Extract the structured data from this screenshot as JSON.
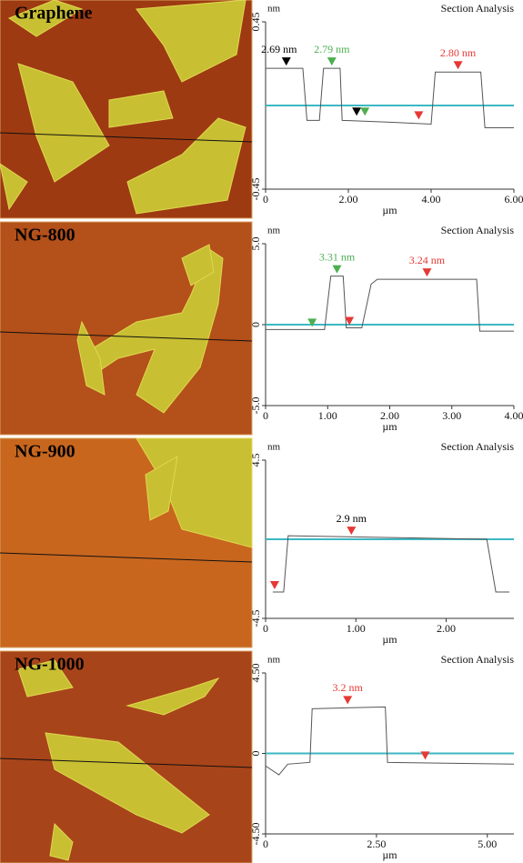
{
  "chart_data": [
    {
      "type": "line",
      "image_label": "Graphene",
      "title": "Section Analysis",
      "ylabel": "nm",
      "xlabel": "µm",
      "color": "#555555",
      "xlim": [
        0,
        6
      ],
      "xticks": [
        0,
        {
          "value": 2,
          "label": "2.00"
        },
        {
          "value": 4,
          "label": "4.00"
        },
        {
          "value": 6,
          "label": "6.00"
        }
      ],
      "ylim": [
        -0.45,
        0.45
      ],
      "yticks": [
        -0.45,
        0.45
      ],
      "x": [
        0,
        0.9,
        1.0,
        1.3,
        1.4,
        1.8,
        1.85,
        3.0,
        4.0,
        4.1,
        5.2,
        5.3,
        6.0
      ],
      "values": [
        0.2,
        0.2,
        -0.08,
        -0.08,
        0.2,
        0.2,
        -0.08,
        -0.09,
        -0.1,
        0.18,
        0.18,
        -0.12,
        -0.12
      ],
      "markers": [
        {
          "color": "#000000",
          "label": "2.69 nm",
          "label_color": "#000000",
          "x": [
            0.5,
            2.2
          ],
          "values": [
            0.2,
            -0.07
          ]
        },
        {
          "color": "#4caf50",
          "label": "2.79 nm",
          "label_color": "#4caf50",
          "x": [
            1.6,
            2.4
          ],
          "values": [
            0.2,
            -0.07
          ]
        },
        {
          "color": "#e53935",
          "label": "2.80 nm",
          "label_color": "#e53935",
          "x": [
            3.7,
            4.65
          ],
          "values": [
            -0.09,
            0.18
          ]
        }
      ]
    },
    {
      "type": "line",
      "image_label": "NG-800",
      "title": "Section Analysis",
      "ylabel": "nm",
      "xlabel": "µm",
      "color": "#555555",
      "xlim": [
        0,
        4
      ],
      "xticks": [
        0,
        {
          "value": 1,
          "label": "1.00"
        },
        {
          "value": 2,
          "label": "2.00"
        },
        {
          "value": 3,
          "label": "3.00"
        },
        {
          "value": 4,
          "label": "4.00"
        }
      ],
      "ylim": [
        -5,
        5
      ],
      "yticks": [
        {
          "value": -5,
          "label": "-5.0"
        },
        0,
        {
          "value": 5,
          "label": "5.0"
        }
      ],
      "x": [
        0,
        0.95,
        1.05,
        1.25,
        1.3,
        1.55,
        1.7,
        1.8,
        3.4,
        3.45,
        4.0
      ],
      "values": [
        -0.3,
        -0.3,
        3.0,
        3.0,
        -0.2,
        -0.2,
        2.5,
        2.8,
        2.8,
        -0.4,
        -0.4
      ],
      "markers": [
        {
          "color": "#4caf50",
          "label": "3.31 nm",
          "label_color": "#4caf50",
          "x": [
            0.75,
            1.15
          ],
          "values": [
            -0.3,
            3.0
          ]
        },
        {
          "color": "#e53935",
          "label": "3.24 nm",
          "label_color": "#e53935",
          "x": [
            1.35,
            2.6
          ],
          "values": [
            -0.2,
            2.8
          ]
        }
      ]
    },
    {
      "type": "line",
      "image_label": "NG-900",
      "title": "Section Analysis",
      "ylabel": "nm",
      "xlabel": "µm",
      "color": "#555555",
      "xlim": [
        0,
        2.75
      ],
      "xticks": [
        0,
        {
          "value": 1,
          "label": "1.00"
        },
        {
          "value": 2,
          "label": "2.00"
        }
      ],
      "ylim": [
        -4.5,
        4.5
      ],
      "yticks": [
        -4.5,
        4.5
      ],
      "x": [
        0.08,
        0.2,
        0.25,
        2.45,
        2.55,
        2.7
      ],
      "values": [
        -3,
        -3,
        0.2,
        0,
        -3,
        -3
      ],
      "markers": [
        {
          "color": "#e53935",
          "label": "2.9 nm",
          "label_color": "#000000",
          "x": [
            0.1,
            0.95
          ],
          "values": [
            -3,
            0.1
          ]
        }
      ]
    },
    {
      "type": "line",
      "image_label": "NG-1000",
      "title": "Section Analysis",
      "ylabel": "nm",
      "xlabel": "µm",
      "color": "#555555",
      "xlim": [
        0,
        5.6
      ],
      "xticks": [
        0,
        {
          "value": 2.5,
          "label": "2.50"
        },
        {
          "value": 5,
          "label": "5.00"
        }
      ],
      "ylim": [
        -4.5,
        4.5
      ],
      "yticks": [
        {
          "value": -4.5,
          "label": "-4.50"
        },
        0,
        {
          "value": 4.5,
          "label": "4.50"
        }
      ],
      "x": [
        0,
        0.3,
        0.5,
        1.0,
        1.05,
        2.7,
        2.75,
        5.6
      ],
      "values": [
        -0.7,
        -1.2,
        -0.6,
        -0.5,
        2.5,
        2.6,
        -0.5,
        -0.6
      ],
      "markers": [
        {
          "color": "#e53935",
          "label": "3.2 nm",
          "label_color": "#e53935",
          "x": [
            1.85,
            3.6
          ],
          "values": [
            2.6,
            -0.5
          ]
        }
      ]
    }
  ]
}
